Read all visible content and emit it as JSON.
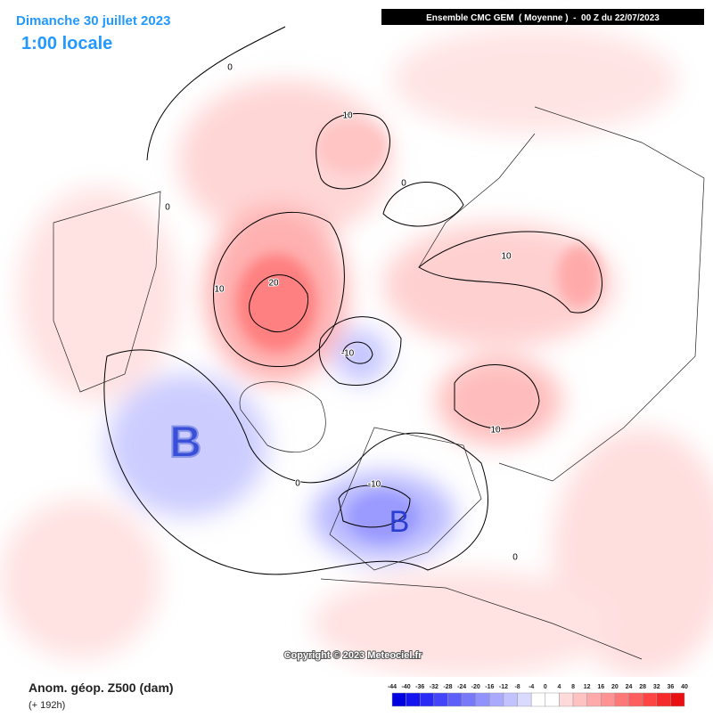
{
  "header": {
    "date": "Dimanche 30 juillet 2023",
    "time": "1:00 locale",
    "model": "Ensemble CMC GEM  ( Moyenne )  -  00 Z du 22/07/2023"
  },
  "contour_labels": [
    "0",
    "0",
    "0",
    "0",
    "0",
    "10",
    "10",
    "10",
    "10",
    "20",
    "-10",
    "-10"
  ],
  "pressure_labels": [
    "B",
    "B"
  ],
  "copyright": "Copyright © 2023 Meteociel.fr",
  "footer": {
    "field": "Anom. géop. Z500 (dam)",
    "lead": "(+ 192h)"
  },
  "colorbar": {
    "ticks": [
      -44,
      -40,
      -36,
      -32,
      -28,
      -24,
      -20,
      -16,
      -12,
      -8,
      -4,
      0,
      4,
      8,
      12,
      16,
      20,
      24,
      28,
      32,
      36,
      40
    ],
    "colors": [
      "#0000e0",
      "#1414ee",
      "#2a2af5",
      "#4444f8",
      "#5e5efa",
      "#7878fb",
      "#9292fc",
      "#aaaafd",
      "#c2c2fe",
      "#dadaff",
      "#ffffff",
      "#ffffff",
      "#ffdada",
      "#ffc2c2",
      "#ffaaaa",
      "#ff9292",
      "#ff7878",
      "#ff5e5e",
      "#ff4444",
      "#f52a2a",
      "#e81010"
    ]
  }
}
